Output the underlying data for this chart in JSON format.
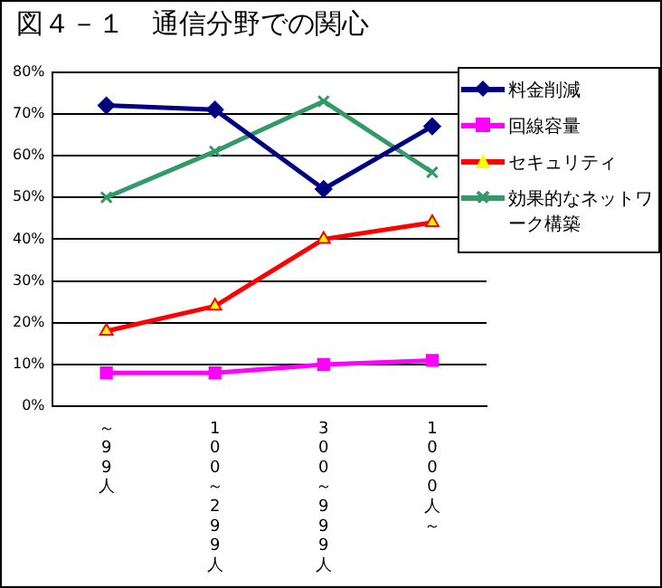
{
  "chart_data": {
    "type": "line",
    "title": "図４－１　通信分野での関心",
    "categories": [
      "～99人",
      "100～299人",
      "300～999人",
      "1000人～"
    ],
    "series": [
      {
        "name": "料金削減",
        "color": "#000080",
        "marker": "diamond",
        "values": [
          72,
          71,
          52,
          67
        ]
      },
      {
        "name": "回線容量",
        "color": "#ff00ff",
        "marker": "square",
        "values": [
          8,
          8,
          10,
          11
        ]
      },
      {
        "name": "セキュリティ",
        "color": "#ff0000",
        "marker": "triangle",
        "values": [
          18,
          24,
          40,
          44
        ]
      },
      {
        "name": "効果的なネットワーク構築",
        "color": "#339966",
        "marker": "cross",
        "values": [
          50,
          61,
          73,
          56
        ]
      }
    ],
    "ylim": [
      0,
      80
    ],
    "yticks": [
      {
        "value": 0,
        "label": "0%"
      },
      {
        "value": 10,
        "label": "10%"
      },
      {
        "value": 20,
        "label": "20%"
      },
      {
        "value": 30,
        "label": "30%"
      },
      {
        "value": 40,
        "label": "40%"
      },
      {
        "value": 50,
        "label": "50%"
      },
      {
        "value": 60,
        "label": "60%"
      },
      {
        "value": 70,
        "label": "70%"
      },
      {
        "value": 80,
        "label": "80%"
      }
    ],
    "grid": "y",
    "legend": "right",
    "line_style": "solid"
  }
}
